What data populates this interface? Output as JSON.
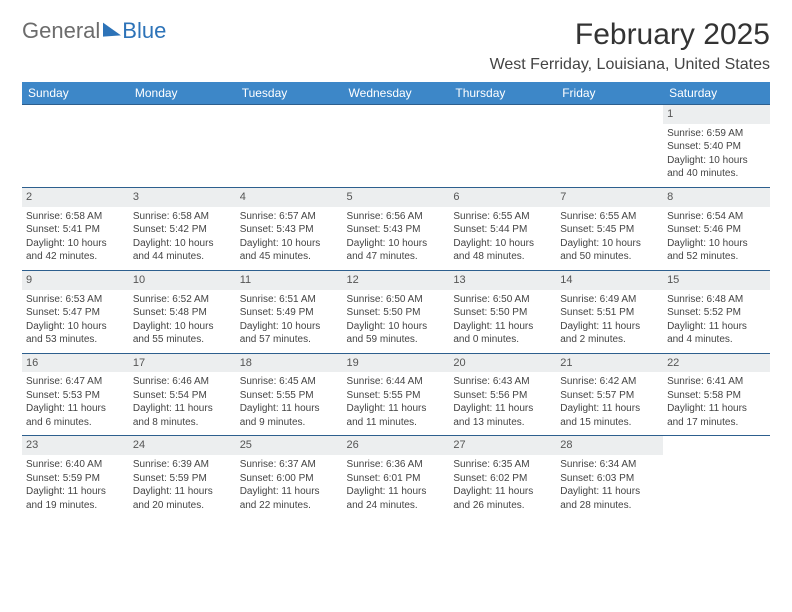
{
  "brand": {
    "part1": "General",
    "part2": "Blue"
  },
  "title": "February 2025",
  "location": "West Ferriday, Louisiana, United States",
  "colors": {
    "header_bg": "#3d87c8",
    "header_text": "#ffffff",
    "cell_border": "#2d5f8e",
    "daynum_bg": "#eceeef",
    "text": "#444444",
    "brand_general": "#6c6c6c",
    "brand_blue": "#2d73b8",
    "page_bg": "#ffffff"
  },
  "typography": {
    "month_title_pt": 30,
    "location_pt": 16,
    "dayhead_pt": 12,
    "body_pt": 10
  },
  "weekdays": [
    "Sunday",
    "Monday",
    "Tuesday",
    "Wednesday",
    "Thursday",
    "Friday",
    "Saturday"
  ],
  "weeks": [
    [
      null,
      null,
      null,
      null,
      null,
      null,
      {
        "num": "1",
        "sunrise": "Sunrise: 6:59 AM",
        "sunset": "Sunset: 5:40 PM",
        "daylight": "Daylight: 10 hours and 40 minutes."
      }
    ],
    [
      {
        "num": "2",
        "sunrise": "Sunrise: 6:58 AM",
        "sunset": "Sunset: 5:41 PM",
        "daylight": "Daylight: 10 hours and 42 minutes."
      },
      {
        "num": "3",
        "sunrise": "Sunrise: 6:58 AM",
        "sunset": "Sunset: 5:42 PM",
        "daylight": "Daylight: 10 hours and 44 minutes."
      },
      {
        "num": "4",
        "sunrise": "Sunrise: 6:57 AM",
        "sunset": "Sunset: 5:43 PM",
        "daylight": "Daylight: 10 hours and 45 minutes."
      },
      {
        "num": "5",
        "sunrise": "Sunrise: 6:56 AM",
        "sunset": "Sunset: 5:43 PM",
        "daylight": "Daylight: 10 hours and 47 minutes."
      },
      {
        "num": "6",
        "sunrise": "Sunrise: 6:55 AM",
        "sunset": "Sunset: 5:44 PM",
        "daylight": "Daylight: 10 hours and 48 minutes."
      },
      {
        "num": "7",
        "sunrise": "Sunrise: 6:55 AM",
        "sunset": "Sunset: 5:45 PM",
        "daylight": "Daylight: 10 hours and 50 minutes."
      },
      {
        "num": "8",
        "sunrise": "Sunrise: 6:54 AM",
        "sunset": "Sunset: 5:46 PM",
        "daylight": "Daylight: 10 hours and 52 minutes."
      }
    ],
    [
      {
        "num": "9",
        "sunrise": "Sunrise: 6:53 AM",
        "sunset": "Sunset: 5:47 PM",
        "daylight": "Daylight: 10 hours and 53 minutes."
      },
      {
        "num": "10",
        "sunrise": "Sunrise: 6:52 AM",
        "sunset": "Sunset: 5:48 PM",
        "daylight": "Daylight: 10 hours and 55 minutes."
      },
      {
        "num": "11",
        "sunrise": "Sunrise: 6:51 AM",
        "sunset": "Sunset: 5:49 PM",
        "daylight": "Daylight: 10 hours and 57 minutes."
      },
      {
        "num": "12",
        "sunrise": "Sunrise: 6:50 AM",
        "sunset": "Sunset: 5:50 PM",
        "daylight": "Daylight: 10 hours and 59 minutes."
      },
      {
        "num": "13",
        "sunrise": "Sunrise: 6:50 AM",
        "sunset": "Sunset: 5:50 PM",
        "daylight": "Daylight: 11 hours and 0 minutes."
      },
      {
        "num": "14",
        "sunrise": "Sunrise: 6:49 AM",
        "sunset": "Sunset: 5:51 PM",
        "daylight": "Daylight: 11 hours and 2 minutes."
      },
      {
        "num": "15",
        "sunrise": "Sunrise: 6:48 AM",
        "sunset": "Sunset: 5:52 PM",
        "daylight": "Daylight: 11 hours and 4 minutes."
      }
    ],
    [
      {
        "num": "16",
        "sunrise": "Sunrise: 6:47 AM",
        "sunset": "Sunset: 5:53 PM",
        "daylight": "Daylight: 11 hours and 6 minutes."
      },
      {
        "num": "17",
        "sunrise": "Sunrise: 6:46 AM",
        "sunset": "Sunset: 5:54 PM",
        "daylight": "Daylight: 11 hours and 8 minutes."
      },
      {
        "num": "18",
        "sunrise": "Sunrise: 6:45 AM",
        "sunset": "Sunset: 5:55 PM",
        "daylight": "Daylight: 11 hours and 9 minutes."
      },
      {
        "num": "19",
        "sunrise": "Sunrise: 6:44 AM",
        "sunset": "Sunset: 5:55 PM",
        "daylight": "Daylight: 11 hours and 11 minutes."
      },
      {
        "num": "20",
        "sunrise": "Sunrise: 6:43 AM",
        "sunset": "Sunset: 5:56 PM",
        "daylight": "Daylight: 11 hours and 13 minutes."
      },
      {
        "num": "21",
        "sunrise": "Sunrise: 6:42 AM",
        "sunset": "Sunset: 5:57 PM",
        "daylight": "Daylight: 11 hours and 15 minutes."
      },
      {
        "num": "22",
        "sunrise": "Sunrise: 6:41 AM",
        "sunset": "Sunset: 5:58 PM",
        "daylight": "Daylight: 11 hours and 17 minutes."
      }
    ],
    [
      {
        "num": "23",
        "sunrise": "Sunrise: 6:40 AM",
        "sunset": "Sunset: 5:59 PM",
        "daylight": "Daylight: 11 hours and 19 minutes."
      },
      {
        "num": "24",
        "sunrise": "Sunrise: 6:39 AM",
        "sunset": "Sunset: 5:59 PM",
        "daylight": "Daylight: 11 hours and 20 minutes."
      },
      {
        "num": "25",
        "sunrise": "Sunrise: 6:37 AM",
        "sunset": "Sunset: 6:00 PM",
        "daylight": "Daylight: 11 hours and 22 minutes."
      },
      {
        "num": "26",
        "sunrise": "Sunrise: 6:36 AM",
        "sunset": "Sunset: 6:01 PM",
        "daylight": "Daylight: 11 hours and 24 minutes."
      },
      {
        "num": "27",
        "sunrise": "Sunrise: 6:35 AM",
        "sunset": "Sunset: 6:02 PM",
        "daylight": "Daylight: 11 hours and 26 minutes."
      },
      {
        "num": "28",
        "sunrise": "Sunrise: 6:34 AM",
        "sunset": "Sunset: 6:03 PM",
        "daylight": "Daylight: 11 hours and 28 minutes."
      },
      null
    ]
  ]
}
